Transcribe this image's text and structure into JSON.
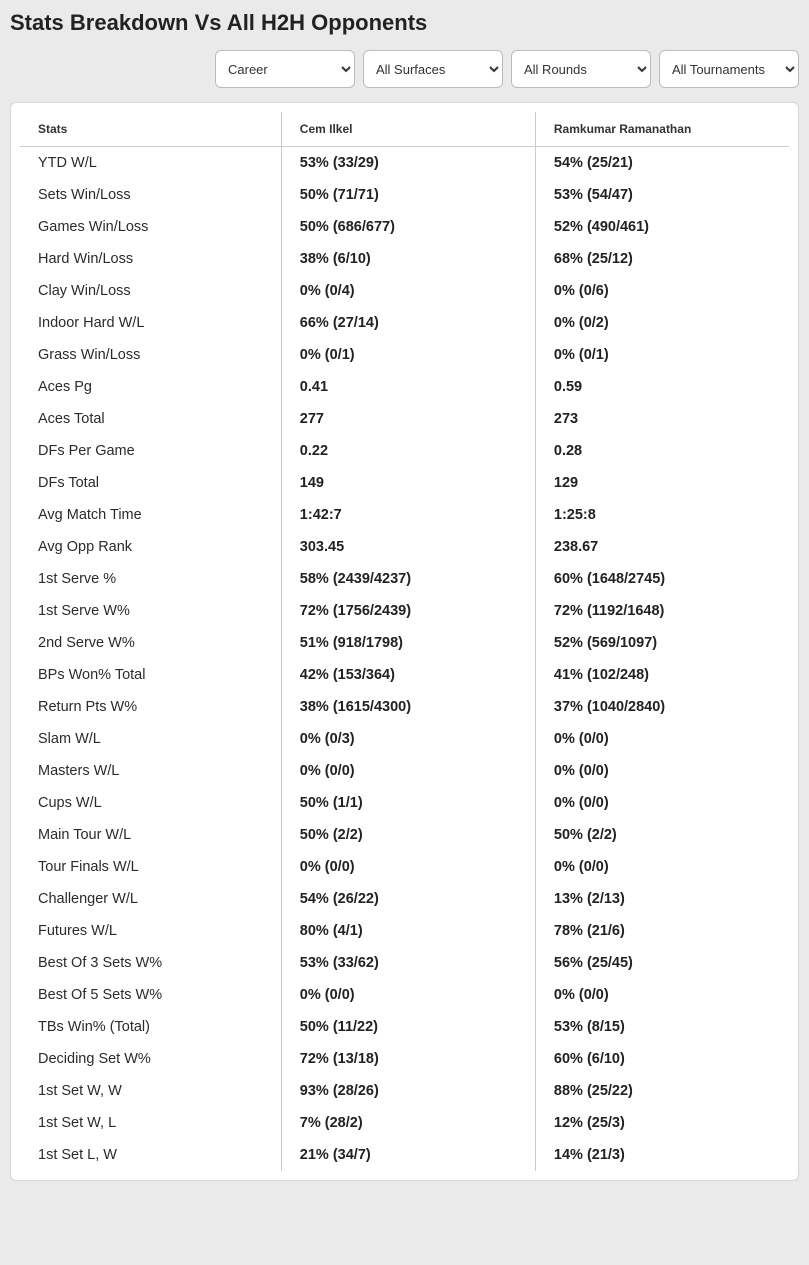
{
  "title": "Stats Breakdown Vs All H2H Opponents",
  "filters": {
    "career": "Career",
    "surface": "All Surfaces",
    "round": "All Rounds",
    "tourn": "All Tournaments"
  },
  "table": {
    "headers": {
      "stat": "Stats",
      "p1": "Cem Ilkel",
      "p2": "Ramkumar Ramanathan"
    },
    "rows": [
      {
        "stat": "YTD W/L",
        "p1": "53% (33/29)",
        "p2": "54% (25/21)"
      },
      {
        "stat": "Sets Win/Loss",
        "p1": "50% (71/71)",
        "p2": "53% (54/47)"
      },
      {
        "stat": "Games Win/Loss",
        "p1": "50% (686/677)",
        "p2": "52% (490/461)"
      },
      {
        "stat": "Hard Win/Loss",
        "p1": "38% (6/10)",
        "p2": "68% (25/12)"
      },
      {
        "stat": "Clay Win/Loss",
        "p1": "0% (0/4)",
        "p2": "0% (0/6)"
      },
      {
        "stat": "Indoor Hard W/L",
        "p1": "66% (27/14)",
        "p2": "0% (0/2)"
      },
      {
        "stat": "Grass Win/Loss",
        "p1": "0% (0/1)",
        "p2": "0% (0/1)"
      },
      {
        "stat": "Aces Pg",
        "p1": "0.41",
        "p2": "0.59"
      },
      {
        "stat": "Aces Total",
        "p1": "277",
        "p2": "273"
      },
      {
        "stat": "DFs Per Game",
        "p1": "0.22",
        "p2": "0.28"
      },
      {
        "stat": "DFs Total",
        "p1": "149",
        "p2": "129"
      },
      {
        "stat": "Avg Match Time",
        "p1": "1:42:7",
        "p2": "1:25:8"
      },
      {
        "stat": "Avg Opp Rank",
        "p1": "303.45",
        "p2": "238.67"
      },
      {
        "stat": "1st Serve %",
        "p1": "58% (2439/4237)",
        "p2": "60% (1648/2745)"
      },
      {
        "stat": "1st Serve W%",
        "p1": "72% (1756/2439)",
        "p2": "72% (1192/1648)"
      },
      {
        "stat": "2nd Serve W%",
        "p1": "51% (918/1798)",
        "p2": "52% (569/1097)"
      },
      {
        "stat": "BPs Won% Total",
        "p1": "42% (153/364)",
        "p2": "41% (102/248)"
      },
      {
        "stat": "Return Pts W%",
        "p1": "38% (1615/4300)",
        "p2": "37% (1040/2840)"
      },
      {
        "stat": "Slam W/L",
        "p1": "0% (0/3)",
        "p2": "0% (0/0)"
      },
      {
        "stat": "Masters W/L",
        "p1": "0% (0/0)",
        "p2": "0% (0/0)"
      },
      {
        "stat": "Cups W/L",
        "p1": "50% (1/1)",
        "p2": "0% (0/0)"
      },
      {
        "stat": "Main Tour W/L",
        "p1": "50% (2/2)",
        "p2": "50% (2/2)"
      },
      {
        "stat": "Tour Finals W/L",
        "p1": "0% (0/0)",
        "p2": "0% (0/0)"
      },
      {
        "stat": "Challenger W/L",
        "p1": "54% (26/22)",
        "p2": "13% (2/13)"
      },
      {
        "stat": "Futures W/L",
        "p1": "80% (4/1)",
        "p2": "78% (21/6)"
      },
      {
        "stat": "Best Of 3 Sets W%",
        "p1": "53% (33/62)",
        "p2": "56% (25/45)"
      },
      {
        "stat": "Best Of 5 Sets W%",
        "p1": "0% (0/0)",
        "p2": "0% (0/0)"
      },
      {
        "stat": "TBs Win% (Total)",
        "p1": "50% (11/22)",
        "p2": "53% (8/15)"
      },
      {
        "stat": "Deciding Set W%",
        "p1": "72% (13/18)",
        "p2": "60% (6/10)"
      },
      {
        "stat": "1st Set W, W",
        "p1": "93% (28/26)",
        "p2": "88% (25/22)"
      },
      {
        "stat": "1st Set W, L",
        "p1": "7% (28/2)",
        "p2": "12% (25/3)"
      },
      {
        "stat": "1st Set L, W",
        "p1": "21% (34/7)",
        "p2": "14% (21/3)"
      }
    ]
  }
}
